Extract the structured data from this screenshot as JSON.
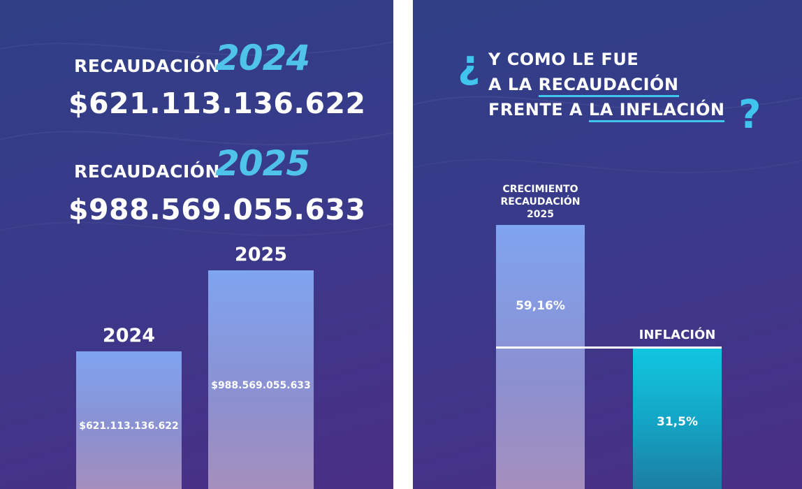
{
  "left": {
    "kicker_2024": "RECAUDACIÓN",
    "year_2024": "2024",
    "amount_2024": "$621.113.136.622",
    "kicker_2025": "RECAUDACIÓN",
    "year_2025": "2025",
    "amount_2025": "$988.569.055.633"
  },
  "right": {
    "q_open": "¿",
    "q_line1": "Y COMO LE FUE",
    "q_line2_a": "A LA ",
    "q_line2_b": "RECAUDACIÓN",
    "q_line3_a": "FRENTE A ",
    "q_line3_b": "LA INFLACIÓN",
    "q_close": "?"
  },
  "colors": {
    "accent": "#4fc3ea",
    "bar": "#7fa4f0",
    "teal_bar": "#12c6e0",
    "background": "#3a3a8a"
  },
  "chart_data": [
    {
      "type": "bar",
      "categories": [
        "2024",
        "2025"
      ],
      "values": [
        621113136622,
        988569055633
      ],
      "value_labels": [
        "$621.113.136.622",
        "$988.569.055.633"
      ],
      "title": "",
      "xlabel": "",
      "ylabel": ""
    },
    {
      "type": "bar",
      "categories": [
        "CRECIMIENTO RECAUDACIÓN 2025",
        "INFLACIÓN"
      ],
      "category_lines": [
        [
          "CRECIMIENTO",
          "RECAUDACIÓN",
          "2025"
        ],
        [
          "INFLACIÓN"
        ]
      ],
      "values": [
        59.16,
        31.5
      ],
      "value_labels": [
        "59,16%",
        "31,5%"
      ],
      "title": "",
      "xlabel": "",
      "ylabel": ""
    }
  ]
}
